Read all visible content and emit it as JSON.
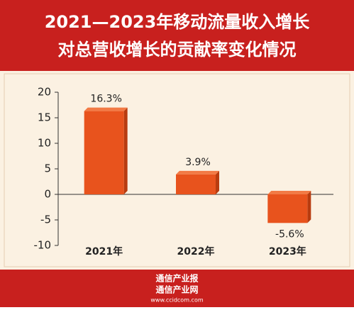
{
  "chart_data": {
    "type": "bar",
    "title_lines": [
      "2021—2023年移动流量收入增长",
      "对总营收增长的贡献率变化情况"
    ],
    "categories": [
      "2021年",
      "2022年",
      "2023年"
    ],
    "values": [
      16.3,
      3.9,
      -5.6
    ],
    "value_labels": [
      "16.3%",
      "3.9%",
      "-5.6%"
    ],
    "color": "#e8531d",
    "ylim": [
      -10,
      20
    ],
    "yticks": [
      -10,
      -5,
      0,
      5,
      10,
      15,
      20
    ],
    "footer": [
      "通信产业报",
      "通信产业网",
      "www.ccidcom.com"
    ]
  }
}
